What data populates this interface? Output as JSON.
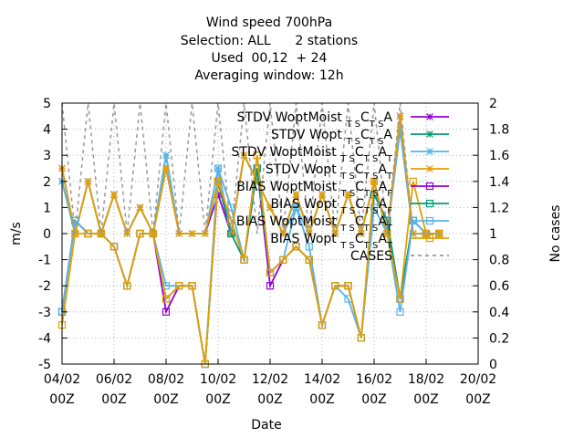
{
  "chart_data": {
    "type": "line",
    "title_lines": [
      "Wind speed 700hPa",
      "Selection: ALL      2 stations",
      "Used  00,12  + 24",
      "Averaging window: 12h"
    ],
    "xlabel": "Date",
    "ylabel": "m/s",
    "y2label": "No cases",
    "ylim": [
      -5,
      5
    ],
    "y2lim": [
      0,
      2
    ],
    "yticks": [
      -5,
      -4,
      -3,
      -2,
      -1,
      0,
      1,
      2,
      3,
      4,
      5
    ],
    "y2ticks": [
      0,
      0.2,
      0.4,
      0.6,
      0.8,
      1,
      1.2,
      1.4,
      1.6,
      1.8,
      2
    ],
    "xticks": [
      {
        "t": 0,
        "date": "04/02",
        "hour": "00Z"
      },
      {
        "t": 2,
        "date": "06/02",
        "hour": "00Z"
      },
      {
        "t": 4,
        "date": "08/02",
        "hour": "00Z"
      },
      {
        "t": 6,
        "date": "10/02",
        "hour": "00Z"
      },
      {
        "t": 8,
        "date": "12/02",
        "hour": "00Z"
      },
      {
        "t": 10,
        "date": "14/02",
        "hour": "00Z"
      },
      {
        "t": 12,
        "date": "16/02",
        "hour": "00Z"
      },
      {
        "t": 14,
        "date": "18/02",
        "hour": "00Z"
      },
      {
        "t": 16,
        "date": "20/02",
        "hour": "00Z"
      }
    ],
    "xlim": [
      0,
      16
    ],
    "grid": true,
    "legend_placement": "top-right",
    "x": [
      0,
      0.5,
      1,
      1.5,
      2,
      2.5,
      3,
      3.5,
      4,
      4.5,
      5,
      5.5,
      6,
      6.5,
      7,
      7.5,
      8,
      8.5,
      9,
      9.5,
      10,
      10.5,
      11,
      11.5,
      12,
      12.5,
      13,
      13.5,
      14,
      14.5
    ],
    "series": [
      {
        "legend": [
          "STDV WoptMoist",
          "T S",
          "C",
          "T S",
          "A",
          ""
        ],
        "color": "#9400d3",
        "marker": "x",
        "axis": "y",
        "values": [
          2.5,
          0,
          2,
          0,
          1.5,
          0,
          1,
          0,
          2.5,
          0,
          0,
          0,
          1.5,
          0,
          3,
          2,
          1,
          0,
          1.5,
          0,
          1.5,
          0,
          1.5,
          0,
          2,
          0,
          4.5,
          0,
          0,
          0
        ]
      },
      {
        "legend": [
          "STDV Wopt",
          "T S",
          "C",
          "T S",
          "A",
          ""
        ],
        "color": "#009e73",
        "marker": "x",
        "axis": "y",
        "values": [
          2,
          0,
          2,
          0,
          1.5,
          0,
          1,
          0,
          3,
          0,
          0,
          0,
          2,
          0,
          3,
          2,
          1,
          0,
          1.5,
          0,
          1.5,
          0,
          1.5,
          0,
          2,
          0,
          4,
          0,
          0,
          0
        ]
      },
      {
        "legend": [
          "STDV WoptMoist",
          "T S",
          "C",
          "T S",
          "A",
          "T"
        ],
        "color": "#56b4e9",
        "marker": "x",
        "axis": "y",
        "values": [
          2,
          0,
          2,
          0,
          1.5,
          0,
          1,
          0,
          3,
          0,
          0,
          0,
          2.5,
          0,
          3,
          2,
          1,
          0,
          1,
          0,
          1.5,
          0,
          1.5,
          0,
          2,
          0,
          4,
          0,
          0,
          0
        ]
      },
      {
        "legend": [
          "STDV Wopt",
          "T S",
          "C",
          "T S",
          "A",
          "T"
        ],
        "color": "#e69f00",
        "marker": "x",
        "axis": "y",
        "values": [
          2.5,
          0,
          2,
          0,
          1.5,
          0,
          1,
          0,
          2.5,
          0,
          0,
          0,
          2,
          0,
          3,
          2,
          1,
          0,
          1.5,
          0,
          1.5,
          0,
          1.5,
          0,
          2,
          0,
          4.5,
          0,
          0,
          0
        ]
      },
      {
        "legend": [
          "BIAS WoptMoist",
          "T S",
          "C",
          "T S",
          "A",
          "F"
        ],
        "color": "#9400d3",
        "marker": "square",
        "axis": "y",
        "values": [
          -3,
          0.5,
          0,
          0,
          -0.5,
          -2,
          0,
          0,
          -3,
          -2,
          -2,
          -5,
          2,
          0,
          -1,
          2.5,
          -2,
          -1,
          -0.5,
          -1,
          -3.5,
          -2,
          -2,
          -4,
          1.5,
          0.5,
          -2.5,
          0.5,
          0,
          0
        ]
      },
      {
        "legend": [
          "BIAS Wopt",
          "T S",
          "C",
          "T S",
          "A",
          "F"
        ],
        "color": "#009e73",
        "marker": "square",
        "axis": "y",
        "values": [
          -3,
          0.5,
          0,
          0,
          -0.5,
          -2,
          0,
          0,
          -2.5,
          -2,
          -2,
          -5,
          2,
          0,
          -1,
          2.5,
          -1.5,
          -1,
          -0.5,
          -1,
          -3.5,
          -2,
          -2,
          -4,
          1.5,
          0.5,
          -2.5,
          0.5,
          0,
          0
        ]
      },
      {
        "legend": [
          "BIAS WoptMoist",
          "T S",
          "C",
          "T S",
          "A",
          "T"
        ],
        "color": "#56b4e9",
        "marker": "square",
        "axis": "y",
        "values": [
          -3,
          0.5,
          0,
          0,
          -0.5,
          -2,
          0,
          0,
          -2,
          -2,
          -2,
          -5,
          2.5,
          1,
          -1,
          3,
          -1.5,
          -1,
          1,
          -0.5,
          -3.5,
          -2,
          -2.5,
          -4,
          1,
          0,
          -3,
          0.5,
          0,
          0
        ]
      },
      {
        "legend": [
          "BIAS Wopt",
          "T S",
          "C",
          "T S",
          "A",
          "T"
        ],
        "color": "#e69f00",
        "marker": "square",
        "axis": "y",
        "values": [
          -3.5,
          0,
          0,
          0,
          -0.5,
          -2,
          0,
          0,
          -2.5,
          -2,
          -2,
          -5,
          2,
          0.5,
          -1,
          3,
          -1.5,
          -1,
          -0.5,
          -1,
          -3.5,
          -2,
          -2,
          -4,
          2,
          0,
          -2.5,
          2,
          0,
          0
        ]
      },
      {
        "legend": [
          "CASES",
          "",
          "",
          "",
          "",
          ""
        ],
        "color": "#999999",
        "marker": "none",
        "dashed": true,
        "axis": "y2",
        "values": [
          2,
          1,
          2,
          1,
          2,
          1,
          2,
          1,
          2,
          1,
          2,
          1,
          2,
          1,
          2,
          1,
          2,
          1,
          2,
          1,
          2,
          1,
          2,
          1,
          2,
          1,
          2,
          1,
          1,
          1
        ]
      }
    ]
  }
}
